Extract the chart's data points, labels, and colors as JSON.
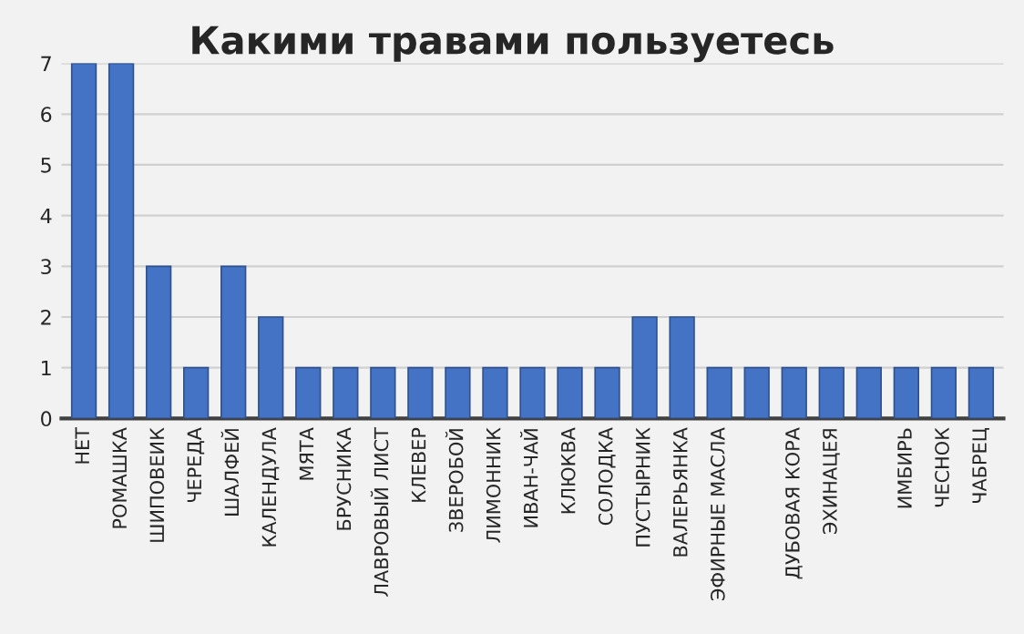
{
  "chart_data": {
    "type": "bar",
    "title": "Какими травами пользуетесь",
    "categories": [
      "НЕТ",
      "РОМАШКА",
      "ШИПОВЕИК",
      "ЧЕРЕДА",
      "ШАЛФЕЙ",
      "КАЛЕНДУЛА",
      "МЯТА",
      "БРУСНИКА",
      "ЛАВРОВЫЙ ЛИСТ",
      "КЛЕВЕР",
      "ЗВЕРОБОЙ",
      "ЛИМОННИК",
      "ИВАН-ЧАЙ",
      "КЛЮКВА",
      "СОЛОДКА",
      "ПУСТЫРНИК",
      "ВАЛЕРЬЯНКА",
      "ЭФИРНЫЕ МАСЛА",
      null,
      "ДУБОВАЯ КОРА",
      "ЭХИНАЦЕЯ",
      null,
      "ИМБИРЬ",
      "ЧЕСНОК",
      "ЧАБРЕЦ"
    ],
    "values": [
      7,
      7,
      3,
      1,
      3,
      2,
      1,
      1,
      1,
      1,
      1,
      1,
      1,
      1,
      1,
      2,
      2,
      1,
      1,
      1,
      1,
      1,
      1,
      1,
      1
    ],
    "color": "#4472c4",
    "ylim": [
      0,
      7
    ],
    "yticks": [
      0,
      1,
      2,
      3,
      4,
      5,
      6,
      7
    ],
    "grid": "y",
    "legend": false
  }
}
